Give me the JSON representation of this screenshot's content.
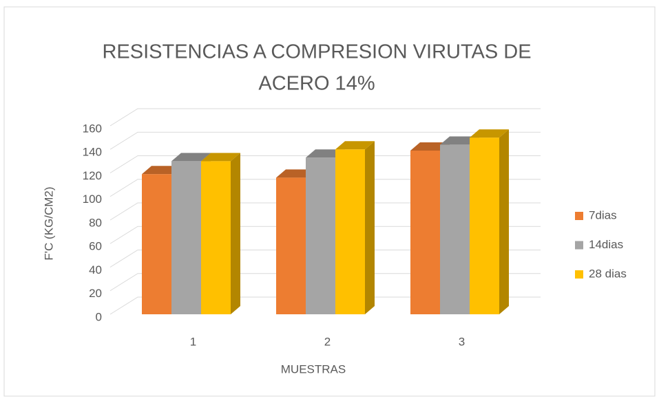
{
  "chart_data": {
    "type": "bar3d",
    "title": [
      "RESISTENCIAS A COMPRESION VIRUTAS DE",
      "ACERO 14%"
    ],
    "x_label": "MUESTRAS",
    "y_label": "F'C (KG/CM2)",
    "categories": [
      "1",
      "2",
      "3"
    ],
    "series": [
      {
        "name": "7dias",
        "color": "#ed7d31",
        "values": [
          119,
          116,
          139
        ]
      },
      {
        "name": "14dias",
        "color": "#a5a5a5",
        "values": [
          130,
          133,
          144
        ]
      },
      {
        "name": "28 dias",
        "color": "#ffc000",
        "values": [
          130,
          140,
          150
        ]
      }
    ],
    "ylim": [
      0,
      160
    ],
    "yticks": [
      0,
      20,
      40,
      60,
      80,
      100,
      120,
      140,
      160
    ],
    "grid": true,
    "legend": "right"
  }
}
